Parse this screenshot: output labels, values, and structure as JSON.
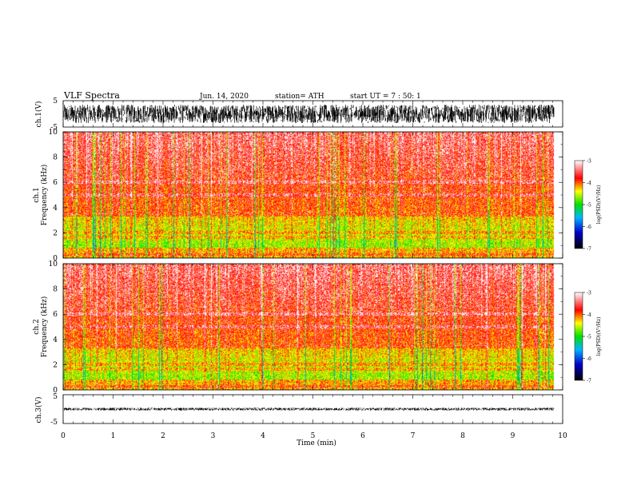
{
  "header": {
    "title": "VLF  Spectra",
    "date": "Jun. 14, 2020",
    "station": "station= ATH",
    "start": "start  UT  =    7  : 50: 1"
  },
  "chart_data": [
    {
      "type": "line",
      "name": "ch1-waveform",
      "ylabel": "ch.1(V)",
      "ylim": [
        -5,
        5
      ],
      "y_ticks": [
        "5",
        "-5"
      ],
      "xlim": [
        0,
        10
      ],
      "data_end_min": 9.83,
      "amplitude_range": [
        -3.5,
        3.5
      ]
    },
    {
      "type": "heatmap",
      "name": "ch1-spectrogram",
      "ylabel_line1": "ch.1",
      "ylabel_line2": "Frequency  (kHz)",
      "ylim": [
        0,
        10
      ],
      "y_ticks": [
        "0",
        "2",
        "4",
        "6",
        "8",
        "10"
      ],
      "xlim": [
        0,
        10
      ],
      "data_end_min": 9.83,
      "colorbar": {
        "label": "log(PSD)(V²/Hz)",
        "range": [
          -7,
          -3
        ],
        "ticks": [
          "-3",
          "-4",
          "-5",
          "-6",
          "-7"
        ]
      }
    },
    {
      "type": "heatmap",
      "name": "ch2-spectrogram",
      "ylabel_line1": "ch.2",
      "ylabel_line2": "Frequency  (kHz)",
      "ylim": [
        0,
        10
      ],
      "y_ticks": [
        "0",
        "2",
        "4",
        "6",
        "8",
        "10"
      ],
      "xlim": [
        0,
        10
      ],
      "data_end_min": 9.83,
      "colorbar": {
        "label": "log(PSD)(V²/Hz)",
        "range": [
          -7,
          -3
        ],
        "ticks": [
          "-3",
          "-4",
          "-5",
          "-6",
          "-7"
        ]
      }
    },
    {
      "type": "line",
      "name": "ch3-waveform",
      "ylabel": "ch.3(V)",
      "ylim": [
        -5,
        5
      ],
      "y_ticks": [
        "5",
        "-5"
      ],
      "xlim": [
        0,
        10
      ],
      "data_end_min": 9.83,
      "amplitude_range": [
        -0.5,
        0.5
      ],
      "xlabel": "Time  (min)",
      "x_ticks": [
        "0",
        "1",
        "2",
        "3",
        "4",
        "5",
        "6",
        "7",
        "8",
        "9",
        "10"
      ]
    }
  ],
  "colors": {
    "palette": [
      "#000000",
      "#0000c8",
      "#00b4ff",
      "#00e000",
      "#ffff00",
      "#ff0000",
      "#ffffff"
    ],
    "trace": "#000000"
  }
}
